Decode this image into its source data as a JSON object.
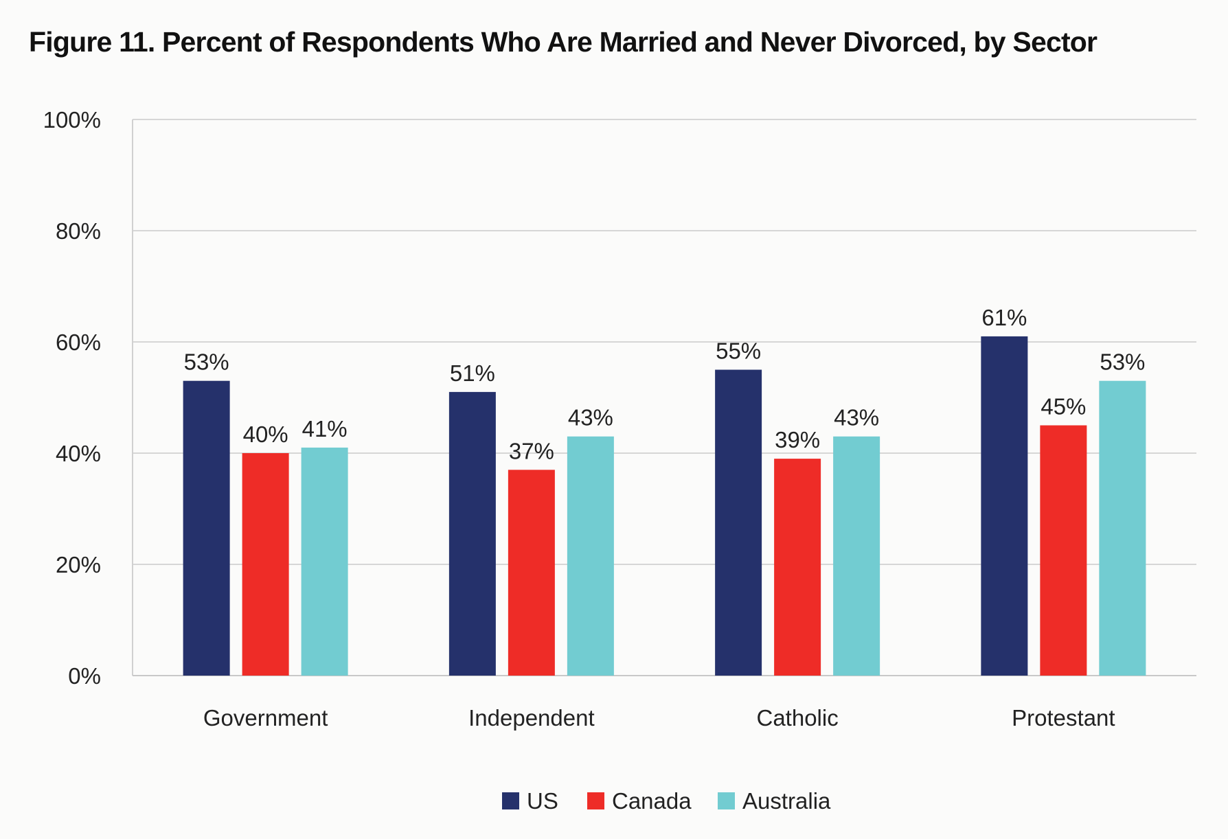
{
  "chart_data": {
    "type": "bar",
    "title": "Figure 11. Percent of Respondents Who Are Married and Never Divorced, by Sector",
    "xlabel": "",
    "ylabel": "",
    "categories": [
      "Government",
      "Independent",
      "Catholic",
      "Protestant"
    ],
    "series": [
      {
        "name": "US",
        "color": "#25316b",
        "values": [
          53,
          51,
          55,
          61
        ]
      },
      {
        "name": "Canada",
        "color": "#ee2c27",
        "values": [
          40,
          37,
          39,
          45
        ]
      },
      {
        "name": "Australia",
        "color": "#72ccd1",
        "values": [
          41,
          43,
          43,
          53
        ]
      }
    ],
    "ylim": [
      0,
      100
    ],
    "yticks": [
      0,
      20,
      40,
      60,
      80,
      100
    ],
    "ytick_labels": [
      "0%",
      "20%",
      "40%",
      "60%",
      "80%",
      "100%"
    ],
    "value_suffix": "%",
    "grid": true,
    "legend_position": "bottom-center"
  }
}
